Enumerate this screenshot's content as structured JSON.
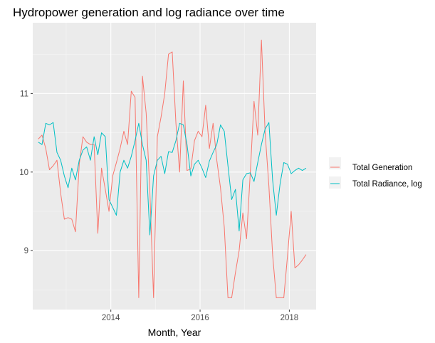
{
  "chart_data": {
    "type": "line",
    "title": "Hydropower generation and log radiance over time",
    "xlabel": "Month, Year",
    "ylabel": "",
    "xlim": [
      2012.25,
      2018.6
    ],
    "ylim": [
      8.25,
      11.9
    ],
    "x_ticks": [
      2014,
      2016,
      2018
    ],
    "x_tick_labels": [
      "2014",
      "2016",
      "2018"
    ],
    "y_ticks": [
      9,
      10,
      11
    ],
    "y_tick_labels": [
      "9",
      "10",
      "11"
    ],
    "grid": true,
    "legend_position": "right",
    "series": [
      {
        "name": "Total Generation",
        "color": "#F8766D",
        "x": [
          2012.375,
          2012.458,
          2012.542,
          2012.625,
          2012.708,
          2012.792,
          2012.875,
          2012.958,
          2013.042,
          2013.125,
          2013.208,
          2013.292,
          2013.375,
          2013.458,
          2013.542,
          2013.625,
          2013.708,
          2013.792,
          2013.875,
          2013.958,
          2014.042,
          2014.125,
          2014.208,
          2014.292,
          2014.375,
          2014.458,
          2014.542,
          2014.625,
          2014.708,
          2014.792,
          2014.875,
          2014.958,
          2015.042,
          2015.125,
          2015.208,
          2015.292,
          2015.375,
          2015.458,
          2015.542,
          2015.625,
          2015.708,
          2015.792,
          2015.875,
          2015.958,
          2016.042,
          2016.125,
          2016.208,
          2016.292,
          2016.375,
          2016.458,
          2016.542,
          2016.625,
          2016.708,
          2016.792,
          2016.875,
          2016.958,
          2017.042,
          2017.125,
          2017.208,
          2017.292,
          2017.375,
          2017.458,
          2017.542,
          2017.625,
          2017.708,
          2017.792,
          2017.875,
          2017.958,
          2018.042,
          2018.125,
          2018.208,
          2018.292,
          2018.375
        ],
        "values": [
          10.42,
          10.47,
          10.3,
          10.03,
          10.08,
          10.15,
          9.73,
          9.4,
          9.42,
          9.4,
          9.24,
          10.1,
          10.45,
          10.38,
          10.35,
          10.35,
          9.22,
          10.05,
          9.78,
          9.5,
          9.95,
          10.12,
          10.3,
          10.52,
          10.35,
          11.03,
          10.95,
          8.4,
          11.22,
          10.75,
          9.75,
          8.4,
          10.45,
          10.7,
          11.0,
          11.5,
          11.53,
          10.62,
          10.0,
          11.16,
          10.02,
          10.04,
          10.4,
          10.52,
          10.45,
          10.85,
          10.3,
          10.62,
          10.15,
          9.8,
          9.3,
          8.4,
          8.4,
          8.72,
          9.0,
          9.48,
          9.15,
          10.0,
          10.9,
          10.47,
          11.68,
          10.5,
          9.82,
          8.95,
          8.4,
          8.4,
          8.4,
          8.93,
          9.5,
          8.78,
          8.82,
          8.88,
          8.95
        ]
      },
      {
        "name": "Total Radiance, log",
        "color": "#00BFC4",
        "x": [
          2012.375,
          2012.458,
          2012.542,
          2012.625,
          2012.708,
          2012.792,
          2012.875,
          2012.958,
          2013.042,
          2013.125,
          2013.208,
          2013.292,
          2013.375,
          2013.458,
          2013.542,
          2013.625,
          2013.708,
          2013.792,
          2013.875,
          2013.958,
          2014.042,
          2014.125,
          2014.208,
          2014.292,
          2014.375,
          2014.458,
          2014.542,
          2014.625,
          2014.708,
          2014.792,
          2014.875,
          2014.958,
          2015.042,
          2015.125,
          2015.208,
          2015.292,
          2015.375,
          2015.458,
          2015.542,
          2015.625,
          2015.708,
          2015.792,
          2015.875,
          2015.958,
          2016.042,
          2016.125,
          2016.208,
          2016.292,
          2016.375,
          2016.458,
          2016.542,
          2016.625,
          2016.708,
          2016.792,
          2016.875,
          2016.958,
          2017.042,
          2017.125,
          2017.208,
          2017.292,
          2017.375,
          2017.458,
          2017.542,
          2017.625,
          2017.708,
          2017.792,
          2017.875,
          2017.958,
          2018.042,
          2018.125,
          2018.208,
          2018.292,
          2018.375
        ],
        "values": [
          10.38,
          10.35,
          10.62,
          10.6,
          10.63,
          10.25,
          10.15,
          9.95,
          9.8,
          10.05,
          9.9,
          10.15,
          10.28,
          10.32,
          10.15,
          10.45,
          10.22,
          10.5,
          10.45,
          9.65,
          9.55,
          9.45,
          10.0,
          10.15,
          10.05,
          10.2,
          10.4,
          10.62,
          10.35,
          10.15,
          9.2,
          9.95,
          10.15,
          10.2,
          9.98,
          10.26,
          10.25,
          10.4,
          10.62,
          10.6,
          10.35,
          9.95,
          10.1,
          10.15,
          10.05,
          9.93,
          10.14,
          10.25,
          10.35,
          10.6,
          10.52,
          10.08,
          9.65,
          9.78,
          9.25,
          9.9,
          9.98,
          9.99,
          9.88,
          10.12,
          10.35,
          10.55,
          10.63,
          9.9,
          9.45,
          9.85,
          10.12,
          10.1,
          9.98,
          10.02,
          10.05,
          10.02,
          10.05
        ]
      }
    ]
  }
}
